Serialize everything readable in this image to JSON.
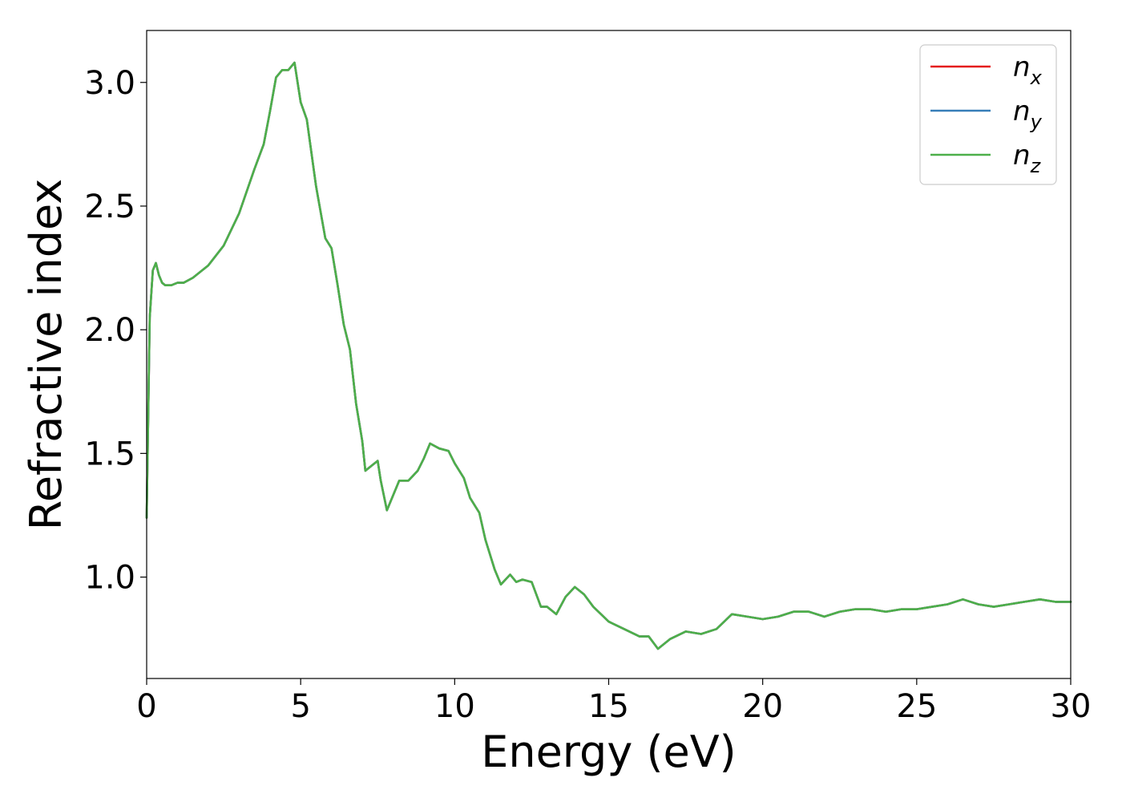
{
  "chart_data": {
    "type": "line",
    "xlabel": "Energy (eV)",
    "ylabel": "Refractive index",
    "xlim": [
      0,
      30
    ],
    "ylim": [
      0.59,
      3.21
    ],
    "xticks": [
      0,
      5,
      10,
      15,
      20,
      25,
      30
    ],
    "yticks": [
      1.0,
      1.5,
      2.0,
      2.5,
      3.0
    ],
    "xtick_labels": [
      "0",
      "5",
      "10",
      "15",
      "20",
      "25",
      "30"
    ],
    "ytick_labels": [
      "1.0",
      "1.5",
      "2.0",
      "2.5",
      "3.0"
    ],
    "grid": false,
    "legend_position": "top-right",
    "series": [
      {
        "name": "n_x",
        "label_base": "n",
        "label_sub": "x",
        "color": "#e41a1c",
        "x": [
          0,
          0.1,
          0.2,
          0.3,
          0.4,
          0.5,
          0.6,
          0.8,
          1.0,
          1.2,
          1.5,
          2.0,
          2.5,
          3.0,
          3.5,
          3.8,
          4.0,
          4.2,
          4.4,
          4.6,
          4.8,
          5.0,
          5.2,
          5.5,
          5.8,
          6.0,
          6.2,
          6.4,
          6.6,
          6.8,
          7.0,
          7.1,
          7.3,
          7.5,
          7.6,
          7.8,
          8.0,
          8.2,
          8.5,
          8.8,
          9.0,
          9.2,
          9.5,
          9.8,
          10.0,
          10.3,
          10.5,
          10.8,
          11.0,
          11.3,
          11.5,
          11.8,
          12.0,
          12.2,
          12.5,
          12.8,
          13.0,
          13.3,
          13.6,
          13.9,
          14.2,
          14.5,
          15.0,
          15.5,
          16.0,
          16.3,
          16.6,
          17.0,
          17.5,
          18.0,
          18.5,
          19.0,
          19.5,
          20.0,
          20.5,
          21.0,
          21.5,
          22.0,
          22.5,
          23.0,
          23.5,
          24.0,
          24.5,
          25.0,
          25.5,
          26.0,
          26.5,
          27.0,
          27.5,
          28.0,
          28.5,
          29.0,
          29.5,
          30.0
        ],
        "y": [
          1.24,
          2.05,
          2.24,
          2.27,
          2.22,
          2.19,
          2.18,
          2.18,
          2.19,
          2.19,
          2.21,
          2.26,
          2.34,
          2.47,
          2.65,
          2.75,
          2.88,
          3.02,
          3.05,
          3.05,
          3.08,
          2.92,
          2.85,
          2.58,
          2.37,
          2.33,
          2.18,
          2.02,
          1.92,
          1.7,
          1.55,
          1.43,
          1.45,
          1.47,
          1.39,
          1.27,
          1.33,
          1.39,
          1.39,
          1.43,
          1.48,
          1.54,
          1.52,
          1.51,
          1.46,
          1.4,
          1.32,
          1.26,
          1.15,
          1.03,
          0.97,
          1.01,
          0.98,
          0.99,
          0.98,
          0.88,
          0.88,
          0.85,
          0.92,
          0.96,
          0.93,
          0.88,
          0.82,
          0.79,
          0.76,
          0.76,
          0.71,
          0.75,
          0.78,
          0.77,
          0.79,
          0.85,
          0.84,
          0.83,
          0.84,
          0.86,
          0.86,
          0.84,
          0.86,
          0.87,
          0.87,
          0.86,
          0.87,
          0.87,
          0.88,
          0.89,
          0.91,
          0.89,
          0.88,
          0.89,
          0.9,
          0.91,
          0.9,
          0.9
        ]
      },
      {
        "name": "n_y",
        "label_base": "n",
        "label_sub": "y",
        "color": "#377eb8",
        "x": [
          0,
          0.1,
          0.2,
          0.3,
          0.4,
          0.5,
          0.6,
          0.8,
          1.0,
          1.2,
          1.5,
          2.0,
          2.5,
          3.0,
          3.5,
          3.8,
          4.0,
          4.2,
          4.4,
          4.6,
          4.8,
          5.0,
          5.2,
          5.5,
          5.8,
          6.0,
          6.2,
          6.4,
          6.6,
          6.8,
          7.0,
          7.1,
          7.3,
          7.5,
          7.6,
          7.8,
          8.0,
          8.2,
          8.5,
          8.8,
          9.0,
          9.2,
          9.5,
          9.8,
          10.0,
          10.3,
          10.5,
          10.8,
          11.0,
          11.3,
          11.5,
          11.8,
          12.0,
          12.2,
          12.5,
          12.8,
          13.0,
          13.3,
          13.6,
          13.9,
          14.2,
          14.5,
          15.0,
          15.5,
          16.0,
          16.3,
          16.6,
          17.0,
          17.5,
          18.0,
          18.5,
          19.0,
          19.5,
          20.0,
          20.5,
          21.0,
          21.5,
          22.0,
          22.5,
          23.0,
          23.5,
          24.0,
          24.5,
          25.0,
          25.5,
          26.0,
          26.5,
          27.0,
          27.5,
          28.0,
          28.5,
          29.0,
          29.5,
          30.0
        ],
        "y": [
          1.24,
          2.05,
          2.24,
          2.27,
          2.22,
          2.19,
          2.18,
          2.18,
          2.19,
          2.19,
          2.21,
          2.26,
          2.34,
          2.47,
          2.65,
          2.75,
          2.88,
          3.02,
          3.05,
          3.05,
          3.08,
          2.92,
          2.85,
          2.58,
          2.37,
          2.33,
          2.18,
          2.02,
          1.92,
          1.7,
          1.55,
          1.43,
          1.45,
          1.47,
          1.39,
          1.27,
          1.33,
          1.39,
          1.39,
          1.43,
          1.48,
          1.54,
          1.52,
          1.51,
          1.46,
          1.4,
          1.32,
          1.26,
          1.15,
          1.03,
          0.97,
          1.01,
          0.98,
          0.99,
          0.98,
          0.88,
          0.88,
          0.85,
          0.92,
          0.96,
          0.93,
          0.88,
          0.82,
          0.79,
          0.76,
          0.76,
          0.71,
          0.75,
          0.78,
          0.77,
          0.79,
          0.85,
          0.84,
          0.83,
          0.84,
          0.86,
          0.86,
          0.84,
          0.86,
          0.87,
          0.87,
          0.86,
          0.87,
          0.87,
          0.88,
          0.89,
          0.91,
          0.89,
          0.88,
          0.89,
          0.9,
          0.91,
          0.9,
          0.9
        ]
      },
      {
        "name": "n_z",
        "label_base": "n",
        "label_sub": "z",
        "color": "#4daf4a",
        "x": [
          0,
          0.1,
          0.2,
          0.3,
          0.4,
          0.5,
          0.6,
          0.8,
          1.0,
          1.2,
          1.5,
          2.0,
          2.5,
          3.0,
          3.5,
          3.8,
          4.0,
          4.2,
          4.4,
          4.6,
          4.8,
          5.0,
          5.2,
          5.5,
          5.8,
          6.0,
          6.2,
          6.4,
          6.6,
          6.8,
          7.0,
          7.1,
          7.3,
          7.5,
          7.6,
          7.8,
          8.0,
          8.2,
          8.5,
          8.8,
          9.0,
          9.2,
          9.5,
          9.8,
          10.0,
          10.3,
          10.5,
          10.8,
          11.0,
          11.3,
          11.5,
          11.8,
          12.0,
          12.2,
          12.5,
          12.8,
          13.0,
          13.3,
          13.6,
          13.9,
          14.2,
          14.5,
          15.0,
          15.5,
          16.0,
          16.3,
          16.6,
          17.0,
          17.5,
          18.0,
          18.5,
          19.0,
          19.5,
          20.0,
          20.5,
          21.0,
          21.5,
          22.0,
          22.5,
          23.0,
          23.5,
          24.0,
          24.5,
          25.0,
          25.5,
          26.0,
          26.5,
          27.0,
          27.5,
          28.0,
          28.5,
          29.0,
          29.5,
          30.0
        ],
        "y": [
          1.24,
          2.05,
          2.24,
          2.27,
          2.22,
          2.19,
          2.18,
          2.18,
          2.19,
          2.19,
          2.21,
          2.26,
          2.34,
          2.47,
          2.65,
          2.75,
          2.88,
          3.02,
          3.05,
          3.05,
          3.08,
          2.92,
          2.85,
          2.58,
          2.37,
          2.33,
          2.18,
          2.02,
          1.92,
          1.7,
          1.55,
          1.43,
          1.45,
          1.47,
          1.39,
          1.27,
          1.33,
          1.39,
          1.39,
          1.43,
          1.48,
          1.54,
          1.52,
          1.51,
          1.46,
          1.4,
          1.32,
          1.26,
          1.15,
          1.03,
          0.97,
          1.01,
          0.98,
          0.99,
          0.98,
          0.88,
          0.88,
          0.85,
          0.92,
          0.96,
          0.93,
          0.88,
          0.82,
          0.79,
          0.76,
          0.76,
          0.71,
          0.75,
          0.78,
          0.77,
          0.79,
          0.85,
          0.84,
          0.83,
          0.84,
          0.86,
          0.86,
          0.84,
          0.86,
          0.87,
          0.87,
          0.86,
          0.87,
          0.87,
          0.88,
          0.89,
          0.91,
          0.89,
          0.88,
          0.89,
          0.9,
          0.91,
          0.9,
          0.9
        ]
      }
    ]
  }
}
